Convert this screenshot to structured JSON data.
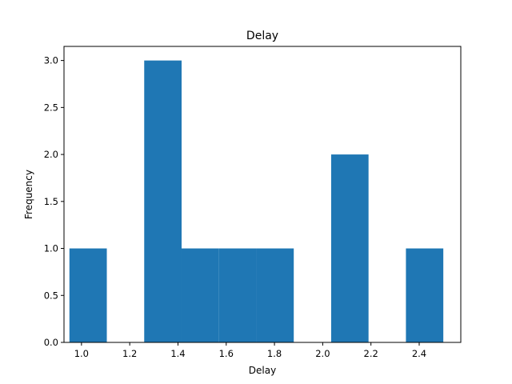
{
  "chart_data": {
    "type": "bar",
    "title": "Delay",
    "xlabel": "Delay",
    "ylabel": "Frequency",
    "bar_color": "#1f77b4",
    "xlim": [
      0.9275,
      2.5725
    ],
    "ylim": [
      0,
      3.15
    ],
    "bins": [
      {
        "x0": 0.95,
        "x1": 1.105,
        "count": 1
      },
      {
        "x0": 1.105,
        "x1": 1.26,
        "count": 0
      },
      {
        "x0": 1.26,
        "x1": 1.415,
        "count": 3
      },
      {
        "x0": 1.415,
        "x1": 1.57,
        "count": 1
      },
      {
        "x0": 1.57,
        "x1": 1.725,
        "count": 1
      },
      {
        "x0": 1.725,
        "x1": 1.88,
        "count": 1
      },
      {
        "x0": 1.88,
        "x1": 2.035,
        "count": 0
      },
      {
        "x0": 2.035,
        "x1": 2.19,
        "count": 2
      },
      {
        "x0": 2.19,
        "x1": 2.345,
        "count": 0
      },
      {
        "x0": 2.345,
        "x1": 2.5,
        "count": 1
      }
    ],
    "x_ticks": [
      {
        "value": 1.0,
        "label": "1.0"
      },
      {
        "value": 1.2,
        "label": "1.2"
      },
      {
        "value": 1.4,
        "label": "1.4"
      },
      {
        "value": 1.6,
        "label": "1.6"
      },
      {
        "value": 1.8,
        "label": "1.8"
      },
      {
        "value": 2.0,
        "label": "2.0"
      },
      {
        "value": 2.2,
        "label": "2.2"
      },
      {
        "value": 2.4,
        "label": "2.4"
      }
    ],
    "y_ticks": [
      {
        "value": 0.0,
        "label": "0.0"
      },
      {
        "value": 0.5,
        "label": "0.5"
      },
      {
        "value": 1.0,
        "label": "1.0"
      },
      {
        "value": 1.5,
        "label": "1.5"
      },
      {
        "value": 2.0,
        "label": "2.0"
      },
      {
        "value": 2.5,
        "label": "2.5"
      },
      {
        "value": 3.0,
        "label": "3.0"
      }
    ]
  }
}
